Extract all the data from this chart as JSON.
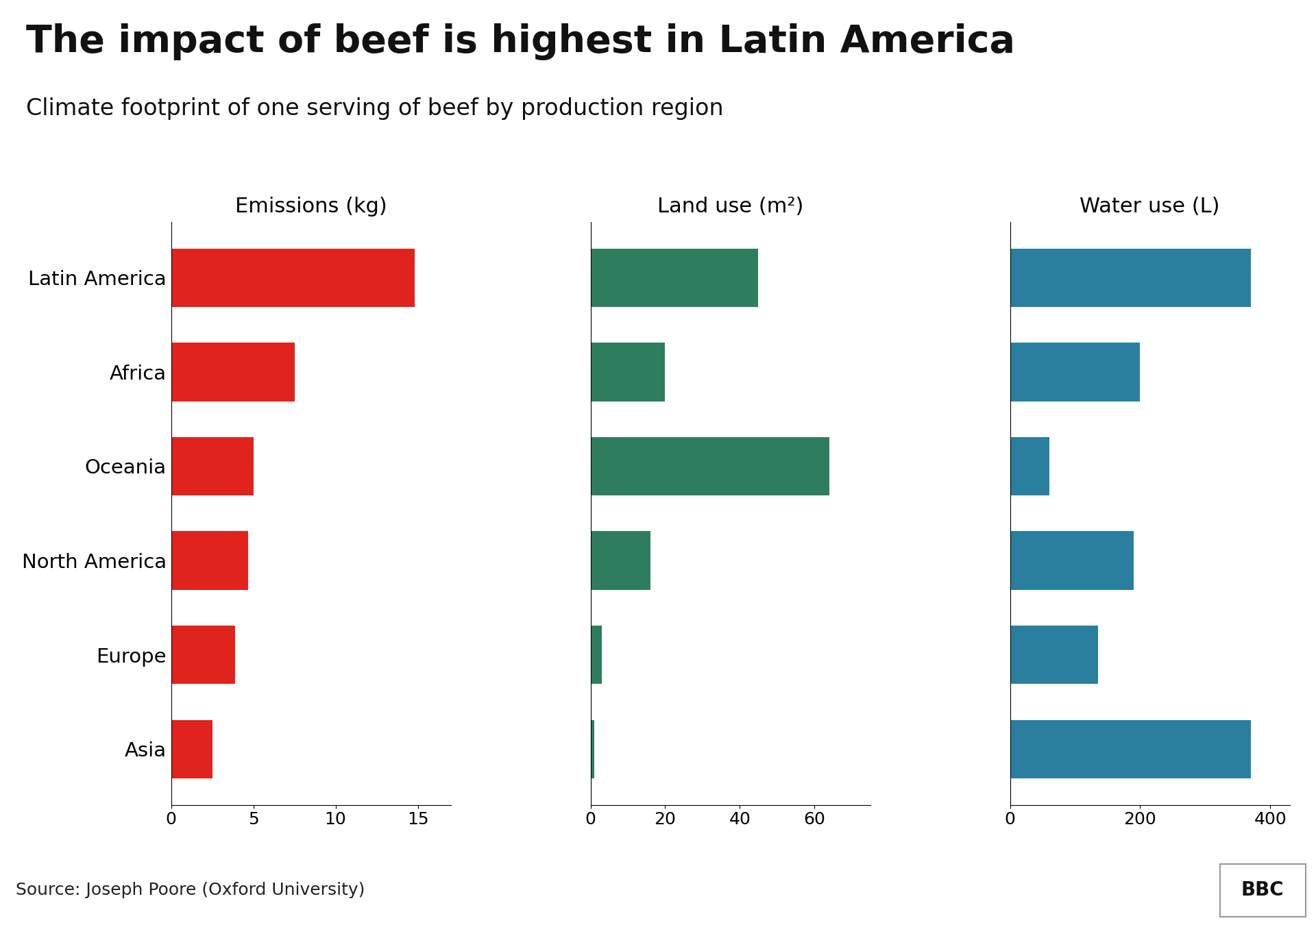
{
  "title": "The impact of beef is highest in Latin America",
  "subtitle": "Climate footprint of one serving of beef by production region",
  "regions": [
    "Latin America",
    "Africa",
    "Oceania",
    "North America",
    "Europe",
    "Asia"
  ],
  "emissions": [
    14.8,
    7.5,
    5.0,
    4.7,
    3.9,
    2.5
  ],
  "land_use": [
    45,
    20,
    64,
    16,
    3,
    1
  ],
  "water_use": [
    370,
    200,
    60,
    190,
    135,
    370
  ],
  "emissions_color": "#e0231c",
  "land_use_color": "#2e7d5e",
  "water_use_color": "#2a7f9e",
  "emissions_label": "Emissions (kg)",
  "land_use_label": "Land use (m²)",
  "water_use_label": "Water use (L)",
  "source": "Source: Joseph Poore (Oxford University)",
  "background_color": "#ffffff",
  "footer_color": "#e0e0e0",
  "title_fontsize": 40,
  "subtitle_fontsize": 24,
  "axis_label_fontsize": 22,
  "tick_fontsize": 18,
  "region_fontsize": 21
}
